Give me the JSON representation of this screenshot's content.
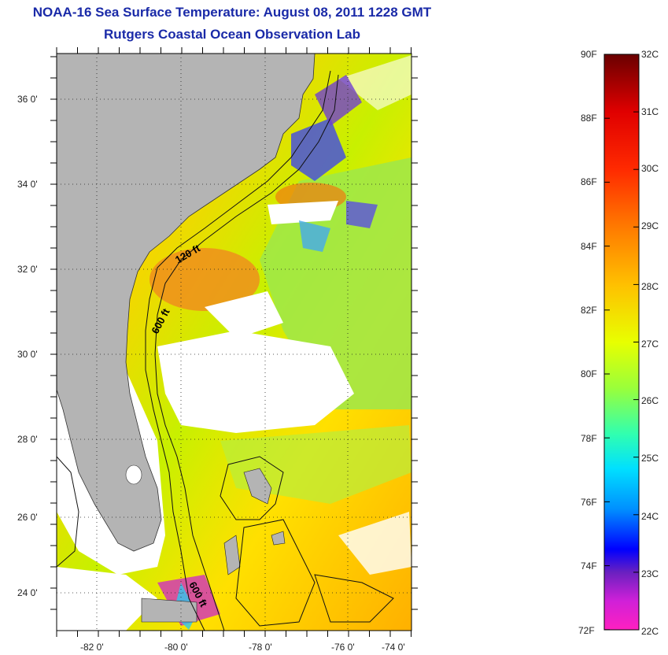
{
  "title": "NOAA-16 Sea Surface Temperature:  August 08, 2011 1228 GMT",
  "subtitle": "Rutgers Coastal Ocean Observation Lab",
  "map": {
    "lat_labels": [
      "36 0'",
      "34 0'",
      "32 0'",
      "30 0'",
      "28 0'",
      "26 0'",
      "24 0'"
    ],
    "lon_labels": [
      "-82 0'",
      "-80 0'",
      "-78 0'",
      "-76 0'",
      "-74 0'"
    ],
    "contour_labels": [
      "120 ft",
      "600 ft",
      "600 ft"
    ],
    "land_color": "#b4b4b4",
    "cloud_color": "#ffffff"
  },
  "colorbar": {
    "f_labels": [
      "90F",
      "88F",
      "86F",
      "84F",
      "82F",
      "80F",
      "78F",
      "76F",
      "74F",
      "72F"
    ],
    "c_labels": [
      "32C",
      "31C",
      "30C",
      "29C",
      "28C",
      "27C",
      "26C",
      "25C",
      "24C",
      "23C",
      "22C"
    ]
  }
}
